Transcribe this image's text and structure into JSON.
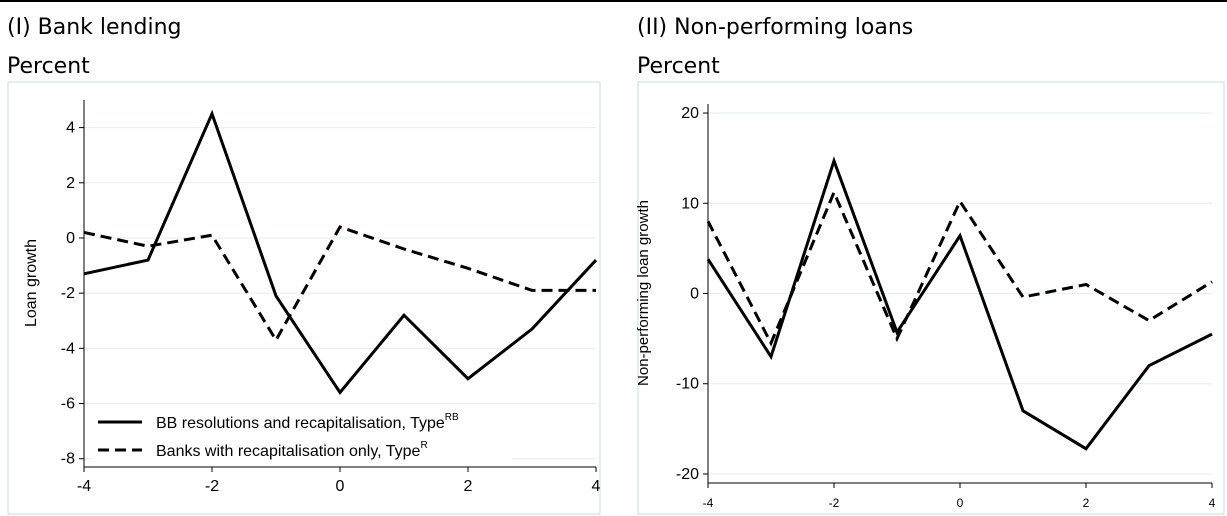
{
  "chart_data": [
    {
      "type": "line",
      "title": "(I) Bank lending",
      "subtitle": "Percent",
      "xlabel": "",
      "ylabel": "Loan growth",
      "xlim": [
        -4,
        4
      ],
      "ylim": [
        -8.3,
        5
      ],
      "xticks": [
        -4,
        -2,
        0,
        2,
        4
      ],
      "yticks": [
        4,
        2,
        0,
        -2,
        -4,
        -6,
        -8
      ],
      "grid": true,
      "legend": "bottom-left",
      "x": [
        -4,
        -3,
        -2,
        -1,
        0,
        1,
        2,
        3,
        4
      ],
      "series": [
        {
          "name": "BB resolutions and recapitalisation, Type",
          "name_sup": "RB",
          "style": "solid",
          "values": [
            -1.3,
            -0.8,
            4.5,
            -2.1,
            -5.6,
            -2.8,
            -5.1,
            -3.3,
            -0.8
          ]
        },
        {
          "name": "Banks with recapitalisation only, Type",
          "name_sup": "R",
          "style": "dashed",
          "values": [
            0.2,
            -0.3,
            0.1,
            -3.7,
            0.4,
            -0.4,
            -1.1,
            -1.9,
            -1.9
          ]
        }
      ]
    },
    {
      "type": "line",
      "title": "(II) Non-performing loans",
      "subtitle": "Percent",
      "xlabel": "",
      "ylabel": "Non-performing loan growth",
      "xlim": [
        -4,
        4
      ],
      "ylim": [
        -21,
        21
      ],
      "xticks": [
        -4,
        -2,
        0,
        2,
        4
      ],
      "yticks": [
        20,
        10,
        0,
        -10,
        -20
      ],
      "grid": true,
      "legend": "none",
      "x": [
        -4,
        -3,
        -2,
        -1,
        0,
        1,
        2,
        3,
        4
      ],
      "series": [
        {
          "style": "solid",
          "values": [
            3.8,
            -7,
            14.7,
            -4.3,
            6.4,
            -13,
            -17.2,
            -8,
            -4.5
          ]
        },
        {
          "style": "dashed",
          "values": [
            8,
            -5.5,
            11.2,
            -5,
            10.2,
            -0.4,
            1,
            -3,
            1.3
          ]
        }
      ]
    }
  ]
}
